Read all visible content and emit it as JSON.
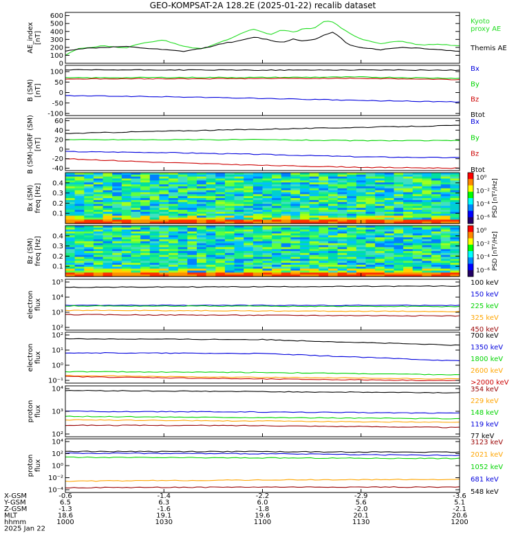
{
  "title": "GEO-KOMPSAT-2A 128.2E (2025-01-22) recalib dataset",
  "colors": {
    "black": "#000000",
    "blue": "#0000dd",
    "green": "#00d400",
    "red": "#cc0000",
    "orange": "#ffa500",
    "darkred": "#990000",
    "proxyGreen": "#22dd22"
  },
  "x_axis": {
    "row_labels": [
      "X-GSM",
      "Y-GSM",
      "Z-GSM",
      "MLT",
      "hhmm",
      "2025 Jan 22"
    ],
    "ticks": [
      {
        "x-gsm": "-0.6",
        "y-gsm": "6.5",
        "z-gsm": "-1.3",
        "mlt": "18.6",
        "hhmm": "1000"
      },
      {
        "x-gsm": "-1.4",
        "y-gsm": "6.3",
        "z-gsm": "-1.6",
        "mlt": "19.1",
        "hhmm": "1030"
      },
      {
        "x-gsm": "-2.2",
        "y-gsm": "6.0",
        "z-gsm": "-1.8",
        "mlt": "19.6",
        "hhmm": "1100"
      },
      {
        "x-gsm": "-2.9",
        "y-gsm": "5.6",
        "z-gsm": "-2.0",
        "mlt": "20.1",
        "hhmm": "1130"
      },
      {
        "x-gsm": "-3.6",
        "y-gsm": "5.1",
        "z-gsm": "-2.1",
        "mlt": "20.6",
        "hhmm": "1200"
      }
    ]
  },
  "chart_data": [
    {
      "type": "line",
      "ylabel": "AE_index\n[nT]",
      "yticks": [
        "0",
        "100",
        "200",
        "300",
        "400",
        "500",
        "600"
      ],
      "ylim": [
        0,
        640
      ],
      "series": [
        {
          "name": "Kyoto\nproxy AE",
          "color": "proxyGreen",
          "x": [
            0,
            0.03,
            0.06,
            0.1,
            0.15,
            0.2,
            0.25,
            0.3,
            0.35,
            0.38,
            0.42,
            0.45,
            0.48,
            0.52,
            0.55,
            0.58,
            0.6,
            0.63,
            0.66,
            0.68,
            0.7,
            0.72,
            0.75,
            0.8,
            0.85,
            0.9,
            0.95,
            1.0
          ],
          "values": [
            100,
            180,
            200,
            220,
            190,
            260,
            290,
            210,
            180,
            240,
            310,
            390,
            430,
            360,
            420,
            390,
            430,
            440,
            540,
            520,
            440,
            380,
            300,
            250,
            280,
            230,
            240,
            220
          ]
        },
        {
          "name": "Themis AE",
          "color": "black",
          "x": [
            0,
            0.03,
            0.06,
            0.1,
            0.15,
            0.2,
            0.25,
            0.3,
            0.35,
            0.4,
            0.45,
            0.48,
            0.52,
            0.55,
            0.58,
            0.6,
            0.63,
            0.66,
            0.68,
            0.7,
            0.72,
            0.75,
            0.8,
            0.85,
            0.9,
            0.95,
            1.0
          ],
          "values": [
            150,
            180,
            190,
            200,
            210,
            190,
            170,
            150,
            190,
            250,
            290,
            330,
            290,
            260,
            310,
            280,
            300,
            360,
            390,
            310,
            230,
            200,
            170,
            200,
            190,
            170,
            150
          ]
        }
      ]
    },
    {
      "type": "line",
      "ylabel": "B (SM)\n[nT]",
      "yticks": [
        "-100",
        "-50",
        "0",
        "50",
        "100"
      ],
      "ylim": [
        -110,
        130
      ],
      "series": [
        {
          "name": "Bx",
          "color": "blue",
          "x": [
            0,
            0.25,
            0.5,
            0.75,
            1
          ],
          "values": [
            -15,
            -20,
            -28,
            -38,
            -45
          ]
        },
        {
          "name": "By",
          "color": "green",
          "x": [
            0,
            0.25,
            0.5,
            0.75,
            1
          ],
          "values": [
            70,
            72,
            72,
            74,
            68
          ]
        },
        {
          "name": "Bz",
          "color": "red",
          "x": [
            0,
            0.25,
            0.5,
            0.75,
            1
          ],
          "values": [
            65,
            66,
            67,
            68,
            62
          ]
        },
        {
          "name": "Btot",
          "color": "black",
          "x": [
            0,
            0.25,
            0.5,
            0.75,
            1
          ],
          "values": [
            108,
            108,
            107,
            108,
            107
          ]
        }
      ]
    },
    {
      "type": "line",
      "ylabel": "B (SM)-IGRF (SM)\n[nT]",
      "yticks": [
        "-40",
        "-20",
        "0",
        "20",
        "40",
        "60"
      ],
      "ylim": [
        -45,
        65
      ],
      "series": [
        {
          "name": "Bx",
          "color": "blue",
          "x": [
            0,
            0.25,
            0.5,
            0.75,
            1
          ],
          "values": [
            -5,
            -7,
            -11,
            -16,
            -18
          ]
        },
        {
          "name": "By",
          "color": "green",
          "x": [
            0,
            0.25,
            0.5,
            0.75,
            1
          ],
          "values": [
            20,
            20,
            20,
            18,
            18
          ]
        },
        {
          "name": "Bz",
          "color": "red",
          "x": [
            0,
            0.25,
            0.5,
            0.75,
            1
          ],
          "values": [
            -20,
            -28,
            -34,
            -38,
            -40
          ]
        },
        {
          "name": "Btot",
          "color": "black",
          "x": [
            0,
            0.25,
            0.5,
            0.75,
            1
          ],
          "values": [
            33,
            38,
            42,
            46,
            50
          ]
        }
      ]
    },
    {
      "type": "heatmap",
      "ylabel": "Bx (SM)\nfreq [Hz]",
      "yticks": [
        "0.1",
        "0.2",
        "0.3",
        "0.4"
      ],
      "ylim": [
        0,
        0.5
      ],
      "colorbar": {
        "label": "PSD [nT²/Hz]",
        "ticks": [
          "10⁰",
          "10⁻²",
          "10⁻⁴",
          "10⁻⁶"
        ]
      }
    },
    {
      "type": "heatmap",
      "ylabel": "Bz (SM)\nfreq [Hz]",
      "yticks": [
        "0.1",
        "0.2",
        "0.3",
        "0.4"
      ],
      "ylim": [
        0,
        0.5
      ],
      "colorbar": {
        "label": "PSD [nT²/Hz]",
        "ticks": [
          "10⁰",
          "10⁻²",
          "10⁻⁴",
          "10⁻⁶"
        ]
      }
    },
    {
      "type": "line",
      "ylabel": "electron\nflux",
      "yscale": "log",
      "yticks": [
        "10²",
        "10³",
        "10⁴",
        "10⁵"
      ],
      "ylim": [
        1,
        5.1
      ],
      "series": [
        {
          "name": "100 keV",
          "color": "black",
          "x": [
            0,
            0.5,
            1
          ],
          "values": [
            4.45,
            4.5,
            4.55
          ]
        },
        {
          "name": "150 keV",
          "color": "blue",
          "x": [
            0,
            0.5,
            1
          ],
          "values": [
            3.0,
            3.0,
            3.0
          ]
        },
        {
          "name": "225 keV",
          "color": "green",
          "x": [
            0,
            0.5,
            1
          ],
          "values": [
            2.95,
            2.93,
            2.9
          ]
        },
        {
          "name": "325 keV",
          "color": "orange",
          "x": [
            0,
            0.5,
            1
          ],
          "values": [
            2.6,
            2.55,
            2.5
          ]
        },
        {
          "name": "450 keV",
          "color": "darkred",
          "x": [
            0,
            0.5,
            1
          ],
          "values": [
            2.25,
            2.2,
            2.15
          ]
        }
      ]
    },
    {
      "type": "line",
      "ylabel": "electron\nflux",
      "yscale": "log",
      "yticks": [
        "10⁻¹",
        "10⁰",
        "10¹",
        "10²"
      ],
      "ylim": [
        -1.1,
        2
      ],
      "series": [
        {
          "name": "700 keV",
          "color": "black",
          "x": [
            0,
            0.5,
            1
          ],
          "values": [
            1.6,
            1.55,
            1.2
          ]
        },
        {
          "name": "1350 keV",
          "color": "blue",
          "x": [
            0,
            0.5,
            1
          ],
          "values": [
            0.75,
            0.7,
            0.25
          ]
        },
        {
          "name": "1800 keV",
          "color": "green",
          "x": [
            0,
            0.5,
            1
          ],
          "values": [
            -0.4,
            -0.45,
            -0.6
          ]
        },
        {
          "name": "2600 keV",
          "color": "orange",
          "x": [
            0,
            0.5,
            1
          ],
          "values": [
            -0.65,
            -0.75,
            -0.85
          ]
        },
        {
          "name": ">2000 keV",
          "color": "red",
          "x": [
            0,
            0.5,
            1
          ],
          "values": [
            -0.7,
            -0.85,
            -0.95
          ]
        }
      ]
    },
    {
      "type": "line",
      "ylabel": "proton\nflux",
      "yscale": "log",
      "yticks": [
        "10²",
        "10³",
        "10⁴"
      ],
      "ylim": [
        1.9,
        4.1
      ],
      "series": [
        {
          "name": "354 keV",
          "color": "darkred",
          "x": [
            0,
            0.5,
            1
          ],
          "values": [
            2.4,
            2.38,
            2.3
          ]
        },
        {
          "name": "229 keV",
          "color": "orange",
          "x": [
            0,
            0.5,
            1
          ],
          "values": [
            2.63,
            2.58,
            2.52
          ]
        },
        {
          "name": "148 keV",
          "color": "green",
          "x": [
            0,
            0.5,
            1
          ],
          "values": [
            2.78,
            2.73,
            2.68
          ]
        },
        {
          "name": "119 keV",
          "color": "blue",
          "x": [
            0,
            0.5,
            1
          ],
          "values": [
            3.0,
            2.97,
            2.92
          ]
        },
        {
          "name": "77 keV",
          "color": "black",
          "x": [
            0,
            0.5,
            1
          ],
          "values": [
            3.9,
            3.85,
            3.8
          ]
        }
      ]
    },
    {
      "type": "line",
      "ylabel": "proton\nflux",
      "yscale": "log",
      "yticks": [
        "10⁻⁴",
        "10⁻²",
        "10⁰",
        "10²",
        "10⁴"
      ],
      "ylim": [
        -4.8,
        4.2
      ],
      "series": [
        {
          "name": "3123 keV",
          "color": "darkred",
          "x": [
            0,
            0.5,
            1
          ],
          "values": [
            -4.0,
            -3.9,
            -3.9
          ]
        },
        {
          "name": "2021 keV",
          "color": "orange",
          "x": [
            0,
            0.5,
            1
          ],
          "values": [
            -2.9,
            -2.7,
            -2.6
          ]
        },
        {
          "name": "1052 keV",
          "color": "green",
          "x": [
            0,
            0.5,
            1
          ],
          "values": [
            1.1,
            1.0,
            0.9
          ]
        },
        {
          "name": "681 keV",
          "color": "blue",
          "x": [
            0,
            0.5,
            1
          ],
          "values": [
            1.8,
            1.7,
            1.4
          ]
        },
        {
          "name": "548 keV",
          "color": "black",
          "x": [
            0,
            0.5,
            1
          ],
          "values": [
            2.1,
            2.05,
            1.95
          ]
        }
      ]
    }
  ]
}
